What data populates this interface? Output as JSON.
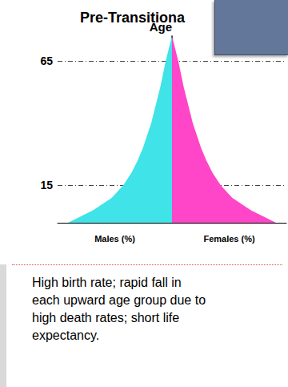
{
  "chart_data": {
    "type": "pyramid",
    "title": "Pre-Transitiona",
    "ylabel": "Age",
    "caption": "High birth rate; rapid fall in each upward age group due to high death rates; short life expectancy.",
    "orientation": "horizontal",
    "y": [
      0,
      5,
      10,
      15,
      20,
      25,
      30,
      35,
      40,
      45,
      50,
      55,
      60,
      65,
      70,
      75
    ],
    "series": [
      {
        "name": "Males (%)",
        "color": "#3fe3e8",
        "values": [
          10,
          7.6,
          5.8,
          4.7,
          3.9,
          3.3,
          2.8,
          2.4,
          2.0,
          1.7,
          1.4,
          1.1,
          0.85,
          0.6,
          0.3,
          0
        ]
      },
      {
        "name": "Females (%)",
        "color": "#ff45c8",
        "values": [
          10,
          7.6,
          5.8,
          4.7,
          3.9,
          3.3,
          2.8,
          2.4,
          2.0,
          1.7,
          1.4,
          1.1,
          0.85,
          0.6,
          0.3,
          0
        ]
      }
    ],
    "xlim": [
      0,
      11
    ],
    "ylim": [
      0,
      75
    ],
    "yticks": [
      15,
      65
    ],
    "grid": true,
    "tick_labels": "y"
  }
}
